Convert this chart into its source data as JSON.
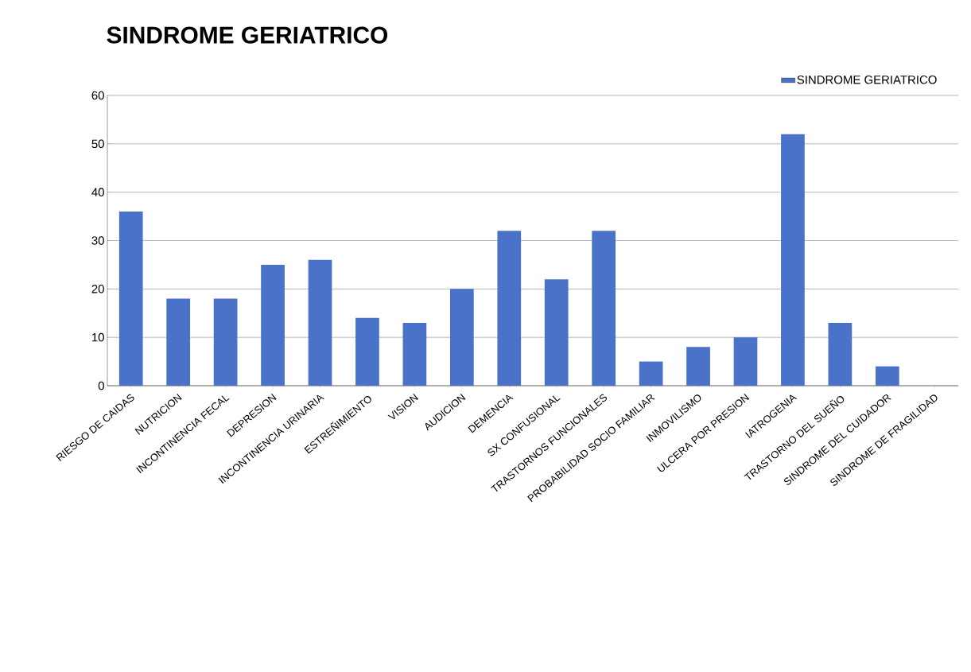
{
  "chart_data": {
    "type": "bar",
    "title": "SINDROME GERIATRICO",
    "categories": [
      "RIESGO DE CAIDAS",
      "NUTRICION",
      "INCONTINENCIA FECAL",
      "DEPRESION",
      "INCONTINENCIA URINARIA",
      "ESTREÑIMIENTO",
      "VISION",
      "AUDICION",
      "DEMENCIA",
      "SX CONFUSIONAL",
      "TRASTORNOS FUNCIONALES",
      "PROBABILIDAD SOCIO FAMILIAR",
      "INMOVILISMO",
      "ULCERA POR PRESION",
      "IATROGENIA",
      "TRASTORNO DEL SUEÑO",
      "SINDROME DEL CUIDADOR",
      "SINDROME DE FRAGILIDAD"
    ],
    "series": [
      {
        "name": "SINDROME GERIATRICO",
        "color": "#4a72c8",
        "values": [
          36,
          18,
          18,
          25,
          26,
          14,
          13,
          20,
          32,
          22,
          32,
          5,
          8,
          10,
          52,
          13,
          4,
          0
        ]
      }
    ],
    "ylim": [
      0,
      60
    ],
    "yticks": [
      0,
      10,
      20,
      30,
      40,
      50,
      60
    ],
    "grid": "y",
    "legend": "top right"
  }
}
